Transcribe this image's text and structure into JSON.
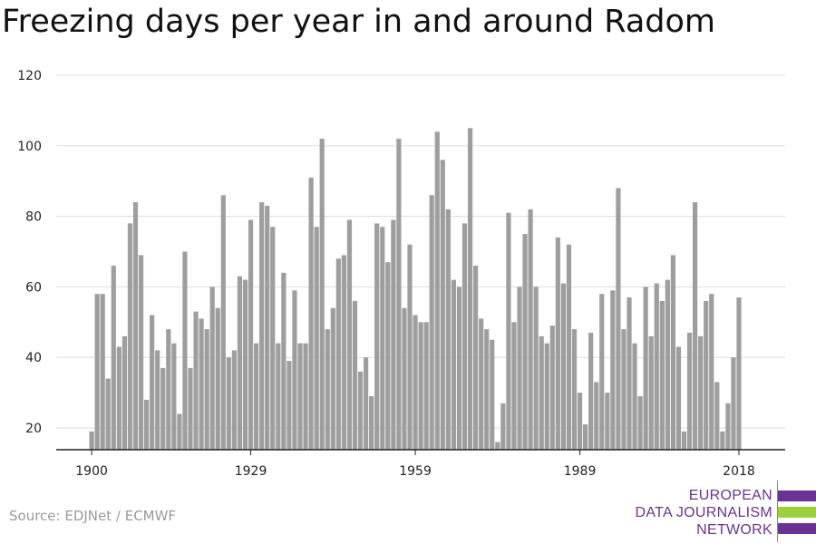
{
  "title": "Freezing days per year in and around Radom",
  "source": "Source: EDJNet / ECMWF",
  "logo": {
    "line1": "EUROPEAN",
    "line2": "DATA JOURNALISM",
    "line3": "NETWORK",
    "colors": {
      "text": "#6b3294",
      "bar_purple": "#6b3294",
      "bar_green": "#9bd13b"
    }
  },
  "colors": {
    "bar": "#9e9e9e",
    "grid": "#dddddd",
    "axis": "#222222"
  },
  "chart_data": {
    "type": "bar",
    "title": "Freezing days per year in and around Radom",
    "xlabel": "",
    "ylabel": "",
    "ylim": [
      14,
      120
    ],
    "yticks": [
      20,
      40,
      60,
      80,
      100,
      120
    ],
    "xticks": [
      1900,
      1929,
      1959,
      1989,
      2018
    ],
    "grid": "horizontal",
    "x": [
      1900,
      1901,
      1902,
      1903,
      1904,
      1905,
      1906,
      1907,
      1908,
      1909,
      1910,
      1911,
      1912,
      1913,
      1914,
      1915,
      1916,
      1917,
      1918,
      1919,
      1920,
      1921,
      1922,
      1923,
      1924,
      1925,
      1926,
      1927,
      1928,
      1929,
      1930,
      1931,
      1932,
      1933,
      1934,
      1935,
      1936,
      1937,
      1938,
      1939,
      1940,
      1941,
      1942,
      1943,
      1944,
      1945,
      1946,
      1947,
      1948,
      1949,
      1950,
      1951,
      1952,
      1953,
      1954,
      1955,
      1956,
      1957,
      1958,
      1959,
      1960,
      1961,
      1962,
      1963,
      1964,
      1965,
      1966,
      1967,
      1968,
      1969,
      1970,
      1971,
      1972,
      1973,
      1974,
      1975,
      1976,
      1977,
      1978,
      1979,
      1980,
      1981,
      1982,
      1983,
      1984,
      1985,
      1986,
      1987,
      1988,
      1989,
      1990,
      1991,
      1992,
      1993,
      1994,
      1995,
      1996,
      1997,
      1998,
      1999,
      2000,
      2001,
      2002,
      2003,
      2004,
      2005,
      2006,
      2007,
      2008,
      2009,
      2010,
      2011,
      2012,
      2013,
      2014,
      2015,
      2016,
      2017,
      2018
    ],
    "values": [
      19,
      58,
      58,
      34,
      66,
      43,
      46,
      78,
      84,
      69,
      28,
      52,
      42,
      37,
      48,
      44,
      24,
      70,
      37,
      53,
      51,
      48,
      60,
      54,
      86,
      40,
      42,
      63,
      62,
      79,
      44,
      84,
      83,
      77,
      44,
      64,
      39,
      59,
      44,
      44,
      91,
      77,
      102,
      48,
      54,
      68,
      69,
      79,
      56,
      36,
      40,
      29,
      78,
      77,
      67,
      79,
      102,
      54,
      72,
      52,
      50,
      50,
      86,
      104,
      96,
      82,
      62,
      60,
      78,
      105,
      66,
      51,
      48,
      45,
      16,
      27,
      81,
      50,
      60,
      75,
      82,
      60,
      46,
      44,
      49,
      74,
      61,
      72,
      48,
      30,
      21,
      47,
      33,
      58,
      30,
      59,
      88,
      48,
      57,
      44,
      29,
      60,
      46,
      61,
      56,
      62,
      69,
      43,
      19,
      47,
      84,
      46,
      56,
      58,
      33,
      19,
      27,
      40,
      57
    ]
  }
}
